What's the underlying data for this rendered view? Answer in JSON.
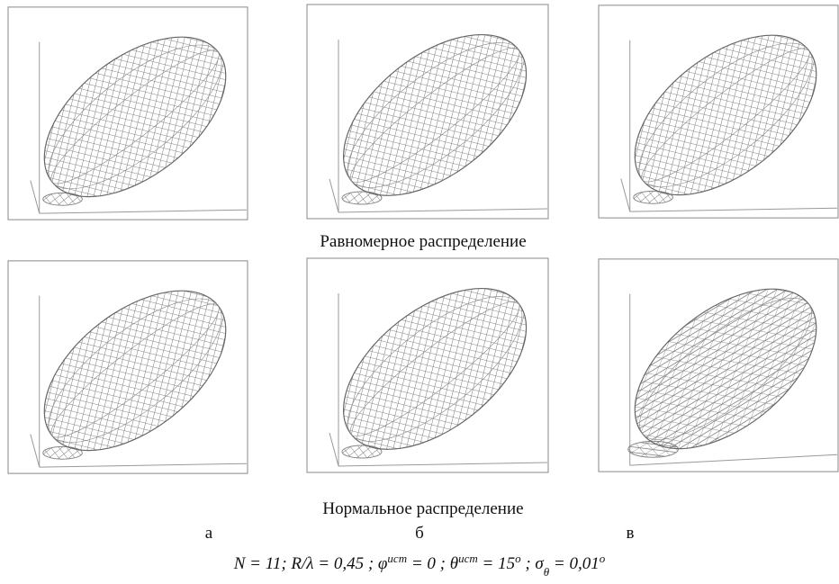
{
  "captions": {
    "uniform": "Равномерное распределение",
    "normal": "Нормальное распределение"
  },
  "labels": [
    "а",
    "б",
    "в"
  ],
  "formula": [
    "N = 11;  R/λ = 0,45 ;  φ",
    "ист",
    " = 0 ;  θ",
    "ист",
    " = 15",
    "o",
    " ;  σ",
    "θ",
    " = 0,01",
    "o"
  ]
}
